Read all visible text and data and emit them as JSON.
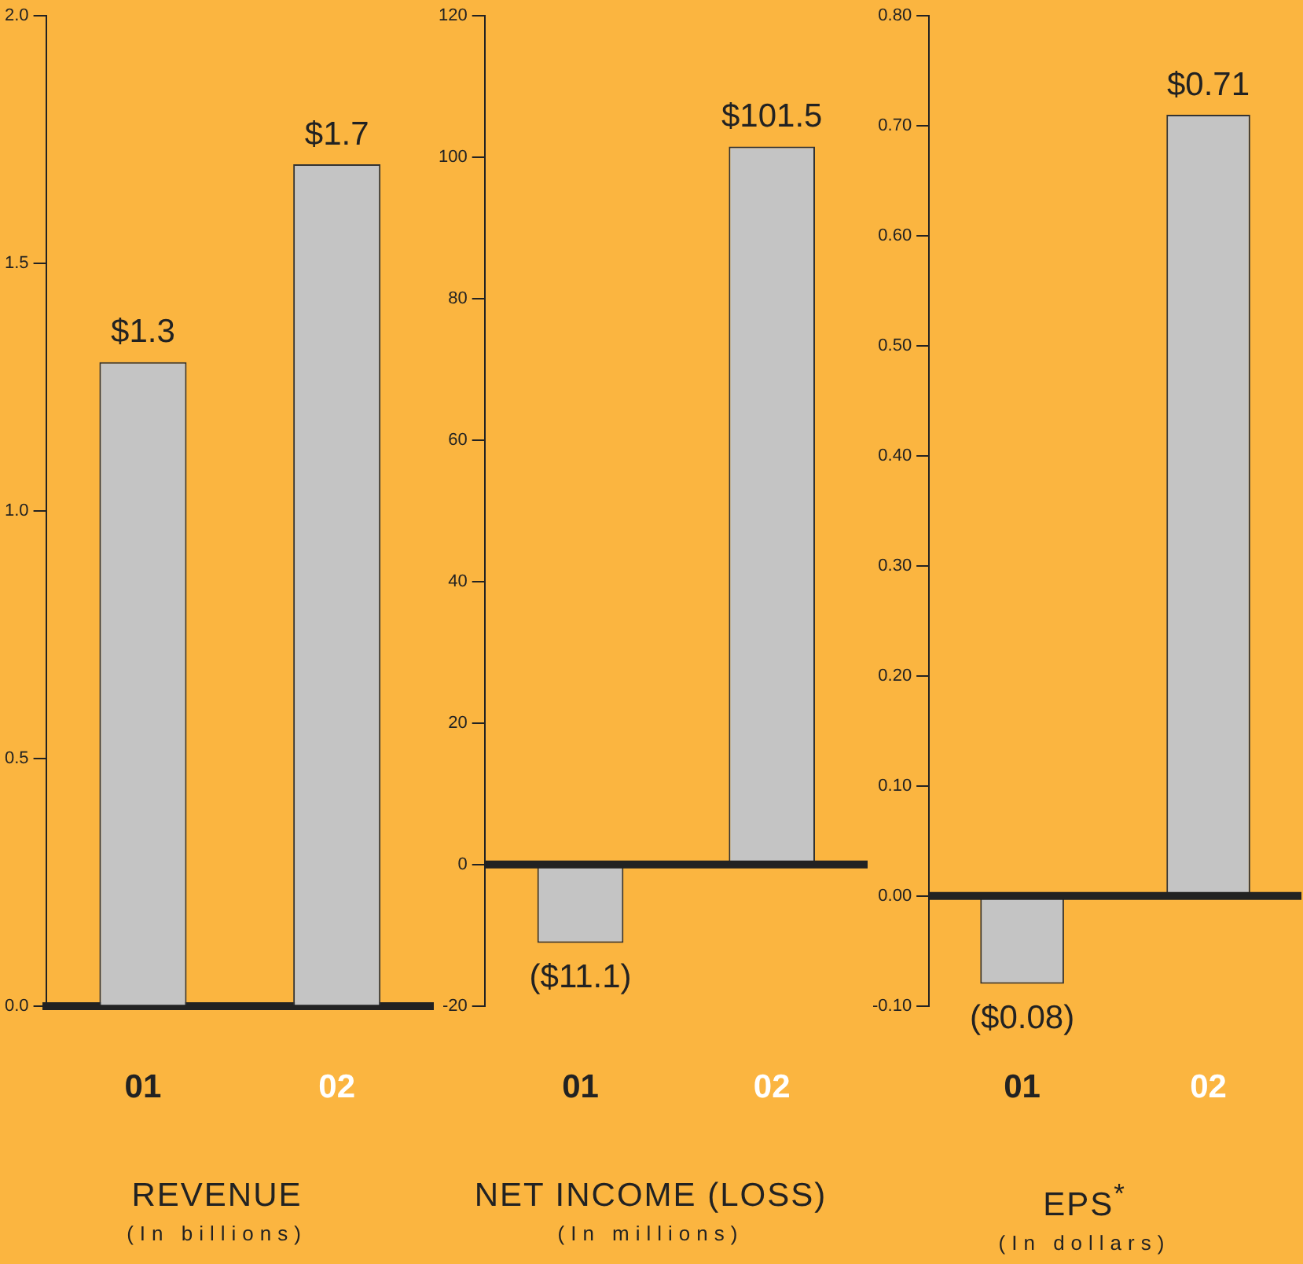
{
  "chart_data": [
    {
      "type": "bar",
      "title": "REVENUE",
      "subtitle": "(In billions)",
      "categories": [
        "01",
        "02"
      ],
      "values": [
        1.3,
        1.7
      ],
      "value_labels": [
        "$1.3",
        "$1.7"
      ],
      "color": "#c4c4c4",
      "ylim": [
        0,
        2
      ],
      "yticks": [
        {
          "value": 0,
          "label": "0.0"
        },
        {
          "value": 0.5,
          "label": "0.5"
        },
        {
          "value": 1,
          "label": "1.0"
        },
        {
          "value": 1.5,
          "label": "1.5"
        },
        {
          "value": 2,
          "label": "2.0"
        }
      ],
      "grid": false,
      "legend": false
    },
    {
      "type": "bar",
      "title": "NET INCOME (LOSS)",
      "subtitle": "(In millions)",
      "categories": [
        "01",
        "02"
      ],
      "values": [
        -11.1,
        101.5
      ],
      "value_labels": [
        "($11.1)",
        "$101.5"
      ],
      "ref_lines": [
        {
          "axis": "y",
          "value": 0,
          "color": "#222222"
        }
      ],
      "color": "#c4c4c4",
      "ylim": [
        -20,
        120
      ],
      "yticks": [
        -20,
        0,
        20,
        40,
        60,
        80,
        100,
        120
      ],
      "grid": false,
      "legend": false
    },
    {
      "type": "bar",
      "title": "EPS$^{*}$",
      "subtitle": "(In dollars)",
      "categories": [
        "01",
        "02"
      ],
      "values": [
        -0.08,
        0.71
      ],
      "value_labels": [
        "($0.08)",
        "$0.71"
      ],
      "ref_lines": [
        {
          "axis": "y",
          "value": 0,
          "color": "#222222"
        }
      ],
      "color": "#c4c4c4",
      "ylim": [
        -0.1,
        0.8
      ],
      "yticks": [
        {
          "value": -0.1,
          "label": "-0.10"
        },
        {
          "value": 0,
          "label": "0.00"
        },
        {
          "value": 0.1,
          "label": "0.10"
        },
        {
          "value": 0.2,
          "label": "0.20"
        },
        {
          "value": 0.3,
          "label": "0.30"
        },
        {
          "value": 0.4,
          "label": "0.40"
        },
        {
          "value": 0.5,
          "label": "0.50"
        },
        {
          "value": 0.6,
          "label": "0.60"
        },
        {
          "value": 0.7,
          "label": "0.70"
        },
        {
          "value": 0.8,
          "label": "0.80"
        }
      ],
      "grid": false,
      "legend": false
    }
  ]
}
